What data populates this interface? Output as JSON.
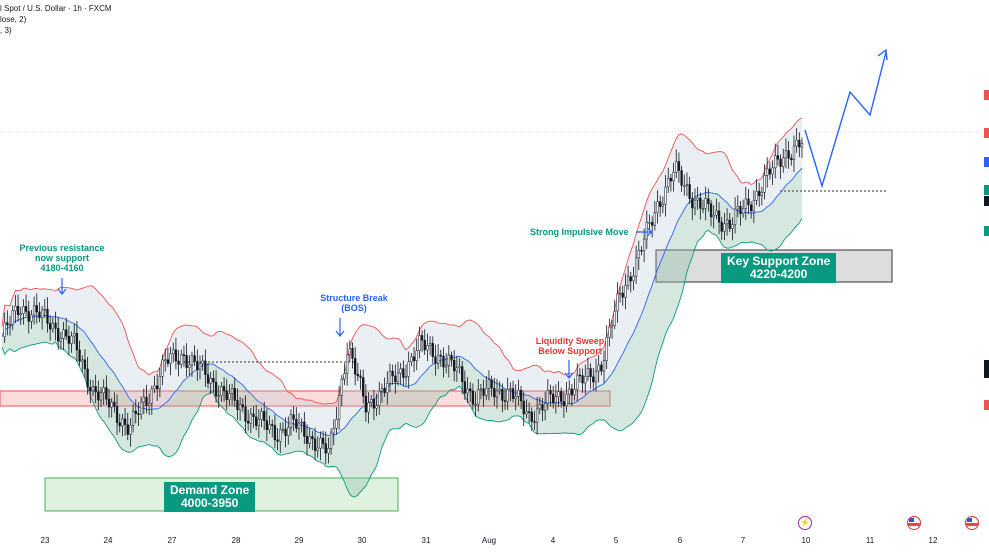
{
  "header": {
    "line1": "l Spot / U.S. Dollar · 1h · FXCM",
    "line2": "lose, 2)",
    "line3": ", 3)"
  },
  "annotations": {
    "prev_resistance": [
      "Previous resistance",
      "now support",
      "4180-4160"
    ],
    "structure_break": [
      "Structure Break",
      "(BOS)"
    ],
    "liquidity_sweep": [
      "Liquidity Sweep",
      "Below Support"
    ],
    "impulsive_move": "Strong Impulsive Move"
  },
  "zones": {
    "demand": {
      "title": "Demand Zone",
      "range": "4000-3950",
      "color": "#4caf50"
    },
    "key_support": {
      "title": "Key Support Zone",
      "range": "4220-4200",
      "color": "#9e9e9e"
    },
    "resistance_band": {
      "color": "#ef5350"
    }
  },
  "x_ticks": [
    "23",
    "24",
    "27",
    "28",
    "29",
    "30",
    "31",
    "Aug",
    "4",
    "5",
    "6",
    "7",
    "10",
    "11",
    "12"
  ],
  "colors": {
    "candle": "#131722",
    "bb_upper": "#ef5350",
    "bb_mid": "#2962ff",
    "bb_lower": "#089981",
    "projection": "#2962ff",
    "label_teal": "#089981",
    "label_blue": "#2962ff",
    "label_red": "#e53935"
  },
  "icons": [
    "lightning-icon",
    "us-flag-icon",
    "us-flag-icon"
  ],
  "chart_data": {
    "type": "candlestick",
    "symbol": "Spot / U.S. Dollar",
    "timeframe": "1h",
    "indicator": "Bollinger Bands",
    "price_path": [
      [
        "Jul 23",
        4110
      ],
      [
        "Jul 23",
        4145
      ],
      [
        "Jul 23",
        4135
      ],
      [
        "Jul 23",
        4120
      ],
      [
        "Jul 24",
        4100
      ],
      [
        "Jul 24",
        4050
      ],
      [
        "Jul 24",
        4030
      ],
      [
        "Jul 24",
        4005
      ],
      [
        "Jul 27",
        4040
      ],
      [
        "Jul 27",
        4080
      ],
      [
        "Jul 27",
        4090
      ],
      [
        "Jul 27",
        4070
      ],
      [
        "Jul 28",
        4050
      ],
      [
        "Jul 28",
        4030
      ],
      [
        "Jul 28",
        4015
      ],
      [
        "Jul 29",
        4000
      ],
      [
        "Jul 29",
        4010
      ],
      [
        "Jul 29",
        3995
      ],
      [
        "Jul 29",
        3975
      ],
      [
        "Jul 30",
        4100
      ],
      [
        "Jul 30",
        4030
      ],
      [
        "Jul 30",
        4050
      ],
      [
        "Jul 30",
        4070
      ],
      [
        "Jul 31",
        4100
      ],
      [
        "Jul 31",
        4090
      ],
      [
        "Jul 31",
        4070
      ],
      [
        "Aug 3",
        4040
      ],
      [
        "Aug 3",
        4050
      ],
      [
        "Aug 3",
        4045
      ],
      [
        "Aug 4",
        4020
      ],
      [
        "Aug 4",
        4035
      ],
      [
        "Aug 4",
        4045
      ],
      [
        "Aug 5",
        4060
      ],
      [
        "Aug 5",
        4080
      ],
      [
        "Aug 5",
        4160
      ],
      [
        "Aug 5",
        4200
      ],
      [
        "Aug 6",
        4260
      ],
      [
        "Aug 6",
        4300
      ],
      [
        "Aug 6",
        4270
      ],
      [
        "Aug 6",
        4250
      ],
      [
        "Aug 7",
        4240
      ],
      [
        "Aug 7",
        4260
      ],
      [
        "Aug 7",
        4290
      ],
      [
        "Aug 10",
        4320
      ],
      [
        "Aug 10",
        4330
      ]
    ],
    "zones": [
      {
        "name": "Demand Zone",
        "low": 3950,
        "high": 4000
      },
      {
        "name": "Key Support Zone",
        "low": 4200,
        "high": 4220
      }
    ],
    "projection": [
      4330,
      4280,
      4360,
      4340,
      4410
    ],
    "xlabel": "",
    "ylabel": ""
  }
}
